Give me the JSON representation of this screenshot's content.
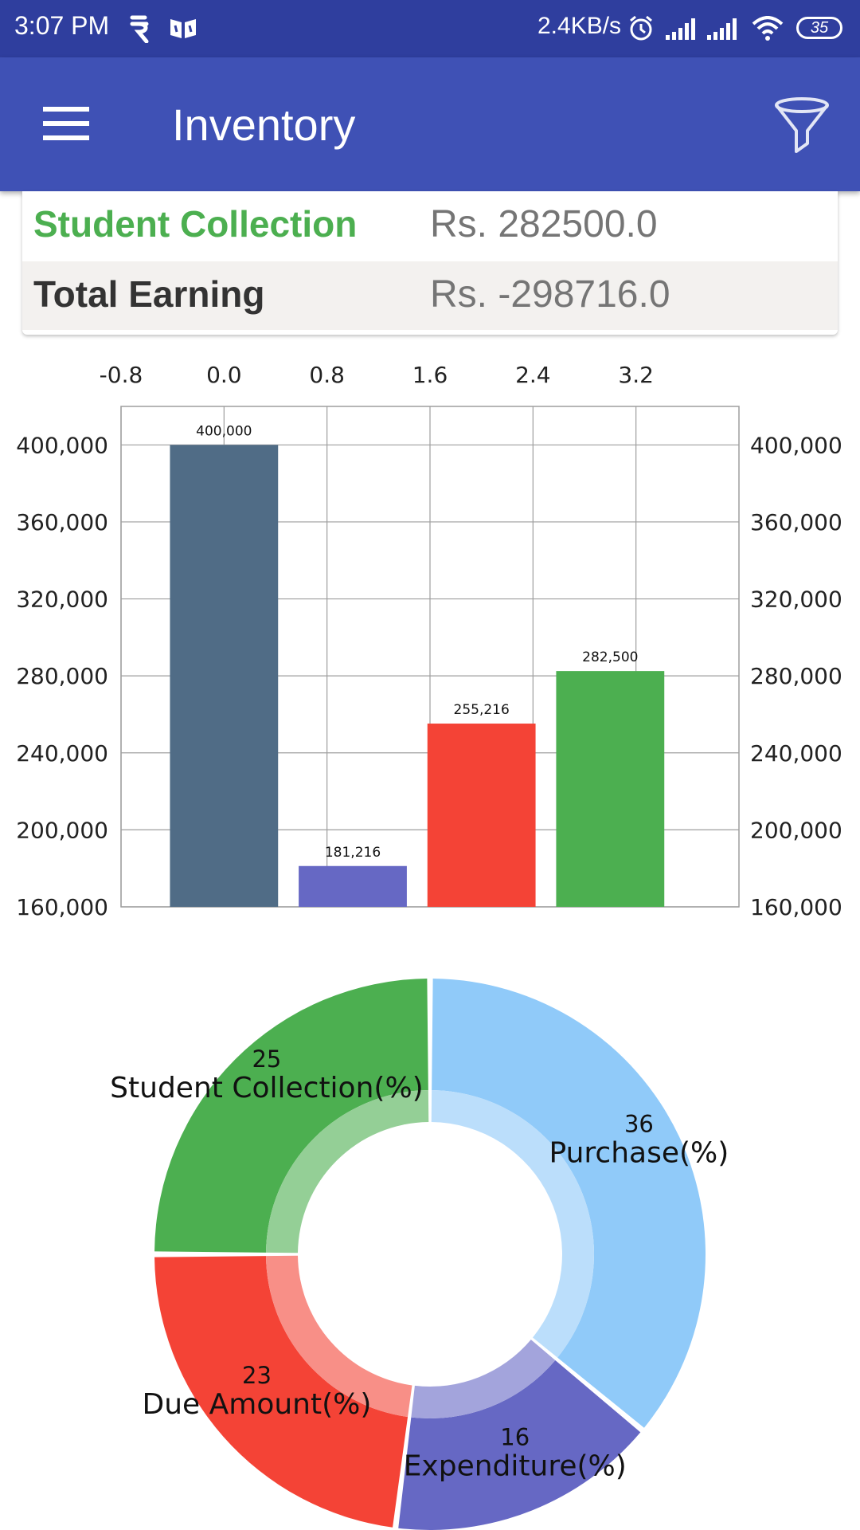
{
  "status_bar": {
    "time": "3:07 PM",
    "net_speed": "2.4KB/s",
    "battery": "35",
    "icons": [
      "notification-r-icon",
      "notification-app-icon",
      "alarm-icon",
      "signal-icon",
      "signal-icon",
      "wifi-icon",
      "battery-icon"
    ]
  },
  "app_bar": {
    "title": "Inventory",
    "menu_icon": "hamburger-menu-icon",
    "filter_icon": "filter-funnel-icon",
    "color": "#3f51b5"
  },
  "summary": {
    "rows": [
      {
        "label": "Student Collection",
        "value": "Rs. 282500.0",
        "label_color": "#4caf50"
      },
      {
        "label": "Total Earning",
        "value": "Rs. -298716.0",
        "label_color": "#333333"
      }
    ]
  },
  "chart_data": [
    {
      "type": "bar",
      "x_ticks": [
        "-0.8",
        "0.0",
        "0.8",
        "1.6",
        "2.4",
        "3.2"
      ],
      "y_ticks": [
        "160,000",
        "200,000",
        "240,000",
        "280,000",
        "320,000",
        "360,000",
        "400,000"
      ],
      "xlim": [
        -0.8,
        4.0
      ],
      "ylim": [
        160000,
        420000
      ],
      "grid": true,
      "bars": [
        {
          "x": 0.0,
          "value": 400000,
          "label": "400,000",
          "color": "#506c86"
        },
        {
          "x": 1.0,
          "value": 181216,
          "label": "181,216",
          "color": "#6668c4"
        },
        {
          "x": 2.0,
          "value": 255216,
          "label": "255,216",
          "color": "#f44336"
        },
        {
          "x": 3.0,
          "value": 282500,
          "label": "282,500",
          "color": "#4caf50"
        }
      ]
    },
    {
      "type": "pie",
      "style": "donut",
      "slices": [
        {
          "label": "Purchase(%)",
          "value": 36,
          "color": "#90caf9",
          "inner_color": "#bbdefb"
        },
        {
          "label": "Expenditure(%)",
          "value": 16,
          "color": "#6668c4",
          "inner_color": "#a3a4dc"
        },
        {
          "label": "Due Amount(%)",
          "value": 23,
          "color": "#f44336",
          "inner_color": "#f88f87"
        },
        {
          "label": "Student Collection(%)",
          "value": 25,
          "color": "#4caf50",
          "inner_color": "#94cf96"
        }
      ]
    }
  ]
}
